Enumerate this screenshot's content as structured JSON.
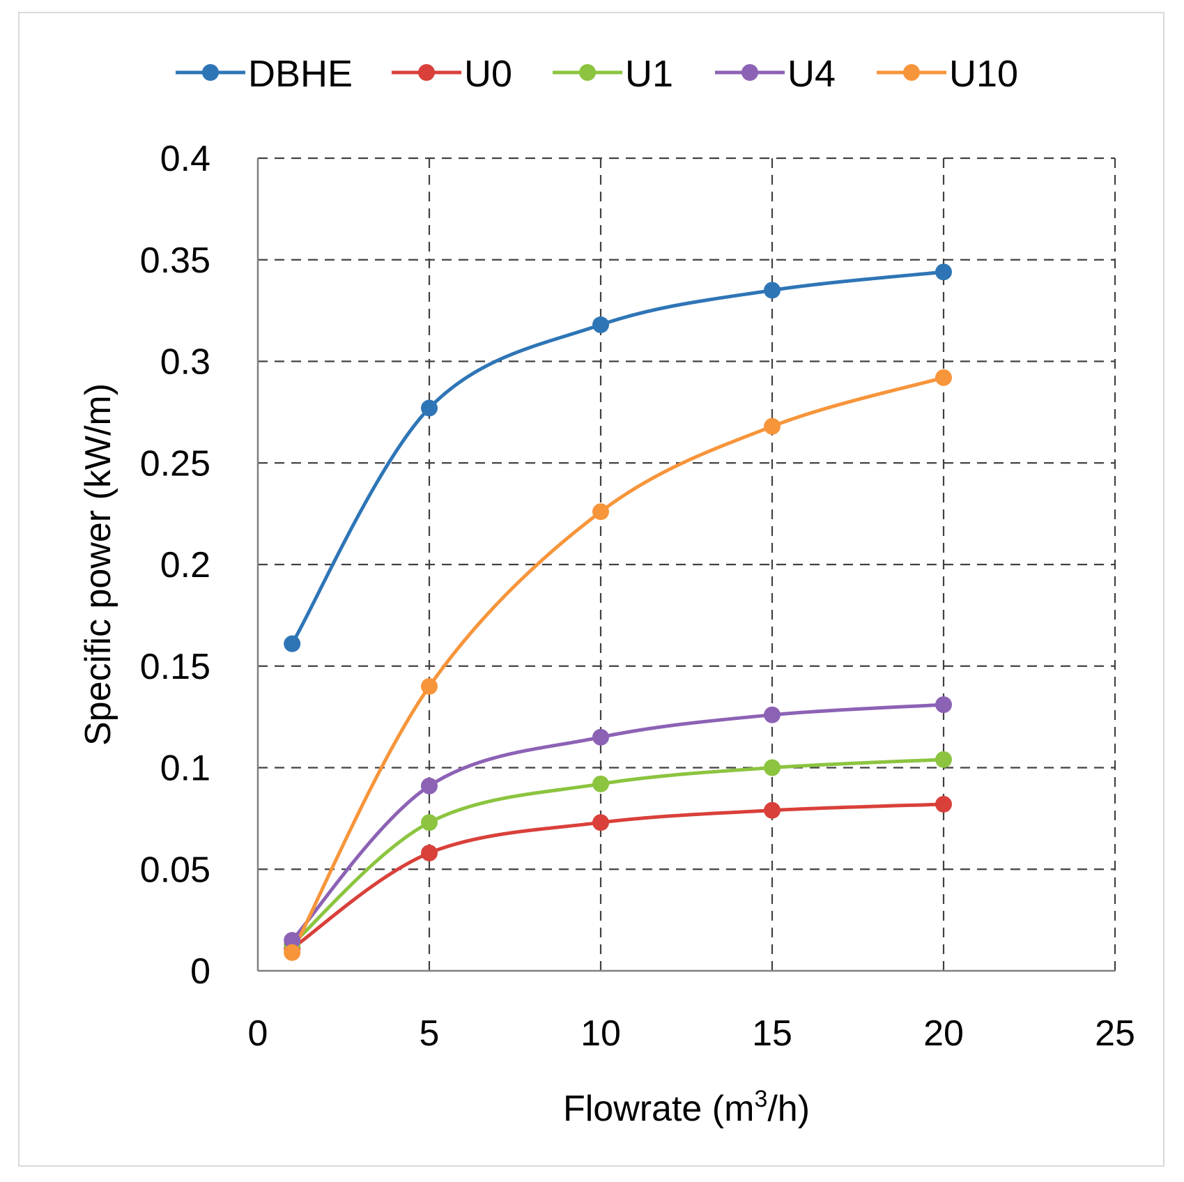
{
  "chart_data": {
    "type": "line",
    "title": "",
    "xlabel": {
      "main": "Flowrate (m",
      "sup": "3",
      "tail": "/h)"
    },
    "ylabel": "Specific power (kW/m)",
    "xlim": [
      0,
      25
    ],
    "ylim": [
      0,
      0.4
    ],
    "xticks": [
      0,
      5,
      10,
      15,
      20,
      25
    ],
    "yticks": [
      0,
      0.05,
      0.1,
      0.15,
      0.2,
      0.25,
      0.3,
      0.35,
      0.4
    ],
    "xtick_labels": [
      "0",
      "5",
      "10",
      "15",
      "20",
      "25"
    ],
    "ytick_labels": [
      "0",
      "0.05",
      "0.1",
      "0.15",
      "0.2",
      "0.25",
      "0.3",
      "0.35",
      "0.4"
    ],
    "grid": true,
    "legend_position": "top",
    "x": [
      1,
      5,
      10,
      15,
      20
    ],
    "series": [
      {
        "name": "DBHE",
        "color": "#2e75b6",
        "values": [
          0.161,
          0.277,
          0.318,
          0.335,
          0.344
        ]
      },
      {
        "name": "U0",
        "color": "#d9403a",
        "values": [
          0.011,
          0.058,
          0.073,
          0.079,
          0.082
        ]
      },
      {
        "name": "U1",
        "color": "#8cc43f",
        "values": [
          0.013,
          0.073,
          0.092,
          0.1,
          0.104
        ]
      },
      {
        "name": "U4",
        "color": "#8c62b5",
        "values": [
          0.015,
          0.091,
          0.115,
          0.126,
          0.131
        ]
      },
      {
        "name": "U10",
        "color": "#f7953b",
        "values": [
          0.009,
          0.14,
          0.226,
          0.268,
          0.292
        ]
      }
    ]
  }
}
